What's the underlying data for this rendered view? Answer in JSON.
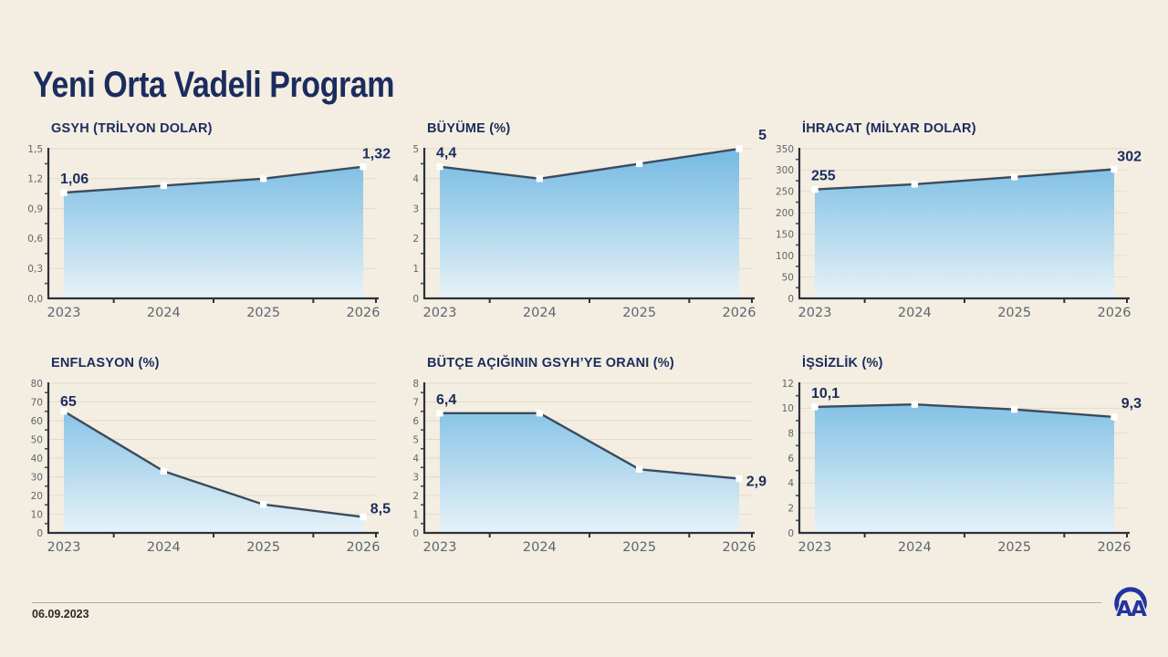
{
  "page": {
    "title": "Yeni Orta Vadeli Program",
    "date": "06.09.2023",
    "logo_text": "AA"
  },
  "colors": {
    "background": "#f3eee1",
    "navy": "#1b2c5e",
    "line": "#3b4b5e",
    "axis": "#2c313c",
    "grid": "#e3dbc8",
    "tick_text": "#5d6570",
    "marker": "#ffffff",
    "area_top": "#6db6e3",
    "area_mid": "#abd6ee",
    "area_bottom": "#e6f2f9",
    "logo_blue": "#2334a0",
    "rule": "#b5ad9c",
    "date_text": "#2a2a28"
  },
  "chart_data": [
    {
      "type": "area",
      "title": "GSYH (TRİLYON DOLAR)",
      "categories": [
        "2023",
        "2024",
        "2025",
        "2026"
      ],
      "values": [
        1.06,
        1.13,
        1.2,
        1.32
      ],
      "first_label": "1,06",
      "last_label": "1,32",
      "ylim": [
        0,
        1.5
      ],
      "yticks": [
        0,
        0.3,
        0.6,
        0.9,
        1.2,
        1.5
      ],
      "ytick_labels": [
        "0,0",
        "0,3",
        "0,6",
        "0,9",
        "1,2",
        "1,5"
      ],
      "grid": "horizontal",
      "label_offsets": {
        "first_dy": -10,
        "last_dy": -9
      }
    },
    {
      "type": "area",
      "title": "BÜYÜME (%)",
      "categories": [
        "2023",
        "2024",
        "2025",
        "2026"
      ],
      "values": [
        4.4,
        4.0,
        4.5,
        5.0
      ],
      "first_label": "4,4",
      "last_label": "5",
      "ylim": [
        0,
        5
      ],
      "yticks": [
        0,
        1,
        2,
        3,
        4,
        5
      ],
      "ytick_labels": [
        "0",
        "1",
        "2",
        "3",
        "4",
        "5"
      ],
      "grid": "horizontal",
      "label_offsets": {
        "first_dy": -10,
        "last_dy": -10
      }
    },
    {
      "type": "area",
      "title": "İHRACAT (MİLYAR DOLAR)",
      "categories": [
        "2023",
        "2024",
        "2025",
        "2026"
      ],
      "values": [
        255,
        267,
        284,
        302
      ],
      "first_label": "255",
      "last_label": "302",
      "ylim": [
        0,
        350
      ],
      "yticks": [
        0,
        50,
        100,
        150,
        200,
        250,
        300,
        350
      ],
      "ytick_labels": [
        "0",
        "50",
        "100",
        "150",
        "200",
        "250",
        "300",
        "350"
      ],
      "grid": "horizontal",
      "label_offsets": {
        "first_dy": -10,
        "last_dy": -9
      }
    },
    {
      "type": "area",
      "title": "ENFLASYON (%)",
      "categories": [
        "2023",
        "2024",
        "2025",
        "2026"
      ],
      "values": [
        65,
        33,
        15.2,
        8.5
      ],
      "first_label": "65",
      "last_label": "8,5",
      "ylim": [
        0,
        80
      ],
      "yticks": [
        0,
        10,
        20,
        30,
        40,
        50,
        60,
        70,
        80
      ],
      "ytick_labels": [
        "0",
        "10",
        "20",
        "30",
        "40",
        "50",
        "60",
        "70",
        "80"
      ],
      "grid": "horizontal",
      "label_offsets": {
        "first_dy": -6,
        "last_dy": -4
      }
    },
    {
      "type": "area",
      "title": "BÜTÇE AÇIĞININ GSYH’YE ORANI (%)",
      "categories": [
        "2023",
        "2024",
        "2025",
        "2026"
      ],
      "values": [
        6.4,
        6.4,
        3.4,
        2.9
      ],
      "first_label": "6,4",
      "last_label": "2,9",
      "ylim": [
        0,
        8
      ],
      "yticks": [
        0,
        1,
        2,
        3,
        4,
        5,
        6,
        7,
        8
      ],
      "ytick_labels": [
        "0",
        "1",
        "2",
        "3",
        "4",
        "5",
        "6",
        "7",
        "8"
      ],
      "grid": "horizontal",
      "label_offsets": {
        "first_dy": -10,
        "last_dy": 8
      }
    },
    {
      "type": "area",
      "title": "İŞSİZLİK (%)",
      "categories": [
        "2023",
        "2024",
        "2025",
        "2026"
      ],
      "values": [
        10.1,
        10.3,
        9.9,
        9.3
      ],
      "first_label": "10,1",
      "last_label": "9,3",
      "ylim": [
        0,
        12
      ],
      "yticks": [
        0,
        2,
        4,
        6,
        8,
        10,
        12
      ],
      "ytick_labels": [
        "0",
        "2",
        "4",
        "6",
        "8",
        "10",
        "12"
      ],
      "grid": "horizontal",
      "label_offsets": {
        "first_dy": -10,
        "last_dy": -10
      }
    }
  ]
}
